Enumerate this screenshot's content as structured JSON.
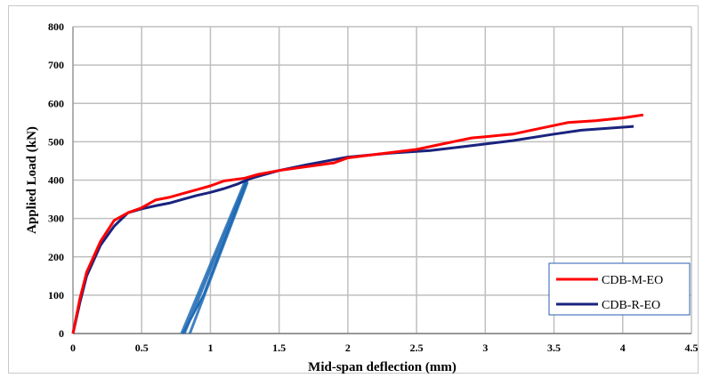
{
  "chart_data": {
    "type": "line",
    "title": "",
    "xlabel": "Mid-span deflection (mm)",
    "ylabel": "Applied Load (kN)",
    "xlim": [
      0,
      4.5
    ],
    "ylim": [
      0,
      800
    ],
    "x_ticks": [
      "0",
      "0.5",
      "1",
      "1.5",
      "2",
      "2.5",
      "3",
      "3.5",
      "4",
      "4.5"
    ],
    "y_ticks": [
      "0",
      "100",
      "200",
      "300",
      "400",
      "500",
      "600",
      "700",
      "800"
    ],
    "grid": true,
    "legend_position": "bottom-right",
    "series": [
      {
        "name": "CDB-M-EO",
        "color": "#ff0000",
        "points": [
          [
            0,
            0
          ],
          [
            0.05,
            90
          ],
          [
            0.1,
            160
          ],
          [
            0.2,
            240
          ],
          [
            0.3,
            295
          ],
          [
            0.4,
            315
          ],
          [
            0.5,
            328
          ],
          [
            0.6,
            348
          ],
          [
            0.7,
            355
          ],
          [
            0.8,
            365
          ],
          [
            0.9,
            375
          ],
          [
            1.0,
            385
          ],
          [
            1.1,
            398
          ],
          [
            1.25,
            405
          ],
          [
            1.35,
            415
          ],
          [
            1.5,
            425
          ],
          [
            1.7,
            435
          ],
          [
            1.9,
            445
          ],
          [
            2.0,
            458
          ],
          [
            2.2,
            467
          ],
          [
            2.5,
            480
          ],
          [
            2.7,
            495
          ],
          [
            2.9,
            510
          ],
          [
            3.0,
            513
          ],
          [
            3.2,
            520
          ],
          [
            3.4,
            535
          ],
          [
            3.6,
            550
          ],
          [
            3.8,
            555
          ],
          [
            4.0,
            562
          ],
          [
            4.15,
            570
          ]
        ]
      },
      {
        "name": "CDB-R-EO",
        "color": "#1a237e",
        "points": [
          [
            0,
            0
          ],
          [
            0.05,
            80
          ],
          [
            0.1,
            150
          ],
          [
            0.2,
            230
          ],
          [
            0.3,
            280
          ],
          [
            0.4,
            315
          ],
          [
            0.5,
            325
          ],
          [
            0.6,
            333
          ],
          [
            0.7,
            340
          ],
          [
            0.8,
            350
          ],
          [
            0.9,
            360
          ],
          [
            1.0,
            368
          ],
          [
            1.1,
            378
          ],
          [
            1.2,
            390
          ],
          [
            1.25,
            398
          ],
          [
            1.3,
            405
          ],
          [
            1.5,
            425
          ],
          [
            1.7,
            440
          ],
          [
            2.0,
            460
          ],
          [
            2.3,
            470
          ],
          [
            2.6,
            477
          ],
          [
            2.9,
            490
          ],
          [
            3.2,
            503
          ],
          [
            3.5,
            520
          ],
          [
            3.7,
            530
          ],
          [
            4.0,
            538
          ],
          [
            4.08,
            540
          ]
        ]
      }
    ],
    "unload_reload_band": {
      "color": "#1e6ab4",
      "lines": [
        [
          [
            0.79,
            0
          ],
          [
            1.25,
            395
          ]
        ],
        [
          [
            0.81,
            0
          ],
          [
            1.26,
            395
          ]
        ],
        [
          [
            0.85,
            0
          ],
          [
            1.27,
            395
          ]
        ],
        [
          [
            0.8,
            0
          ],
          [
            0.95,
            100
          ],
          [
            1.27,
            400
          ]
        ]
      ]
    }
  }
}
